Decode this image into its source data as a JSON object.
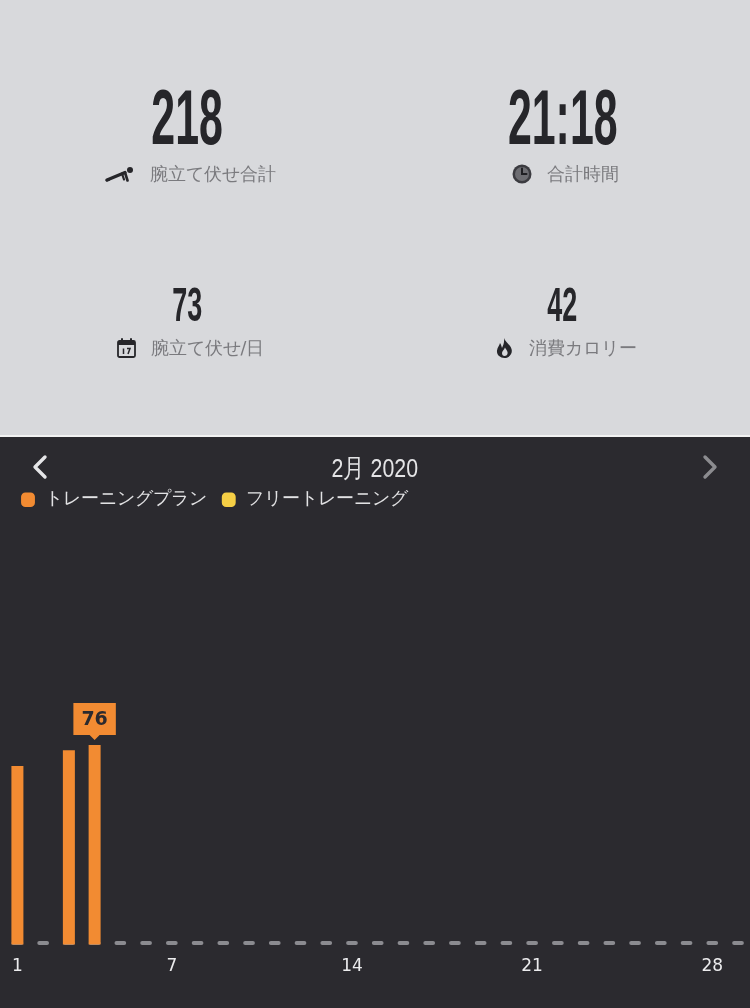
{
  "chart_data": [
    {
      "type": "other",
      "annotations": [
        "218",
        "腕立て伏せ合計",
        "21:18",
        "合計時間",
        "73",
        "腕立て伏せ/日",
        "42",
        "消費カロリー"
      ]
    },
    {
      "type": "bar",
      "title": "2月 2020",
      "legend": "top left",
      "tick_labels": "x",
      "categories": [
        "1",
        null,
        null,
        null,
        null,
        null,
        "7",
        null,
        null,
        null,
        null,
        null,
        null,
        "14",
        null,
        null,
        null,
        null,
        null,
        null,
        "21",
        null,
        null,
        null,
        null,
        null,
        null,
        "28",
        null
      ],
      "series": [
        {
          "name": "トレーニングプラン",
          "color": "#f28b32",
          "values": [
            68,
            0,
            74,
            76,
            0,
            0,
            0,
            0,
            0,
            0,
            0,
            0,
            0,
            0,
            0,
            0,
            0,
            0,
            0,
            0,
            0,
            0,
            0,
            0,
            0,
            0,
            0,
            0,
            0
          ],
          "value_labels": [
            null,
            null,
            null,
            "76",
            null,
            null,
            null,
            null,
            null,
            null,
            null,
            null,
            null,
            null,
            null,
            null,
            null,
            null,
            null,
            null,
            null,
            null,
            null,
            null,
            null,
            null,
            null,
            null,
            null
          ]
        },
        {
          "name": "フリートレーニング",
          "color": "#f6cf45",
          "values": [
            0,
            0,
            0,
            0,
            0,
            0,
            0,
            0,
            0,
            0,
            0,
            0,
            0,
            0,
            0,
            0,
            0,
            0,
            0,
            0,
            0,
            0,
            0,
            0,
            0,
            0,
            0,
            0,
            0
          ]
        }
      ]
    }
  ]
}
